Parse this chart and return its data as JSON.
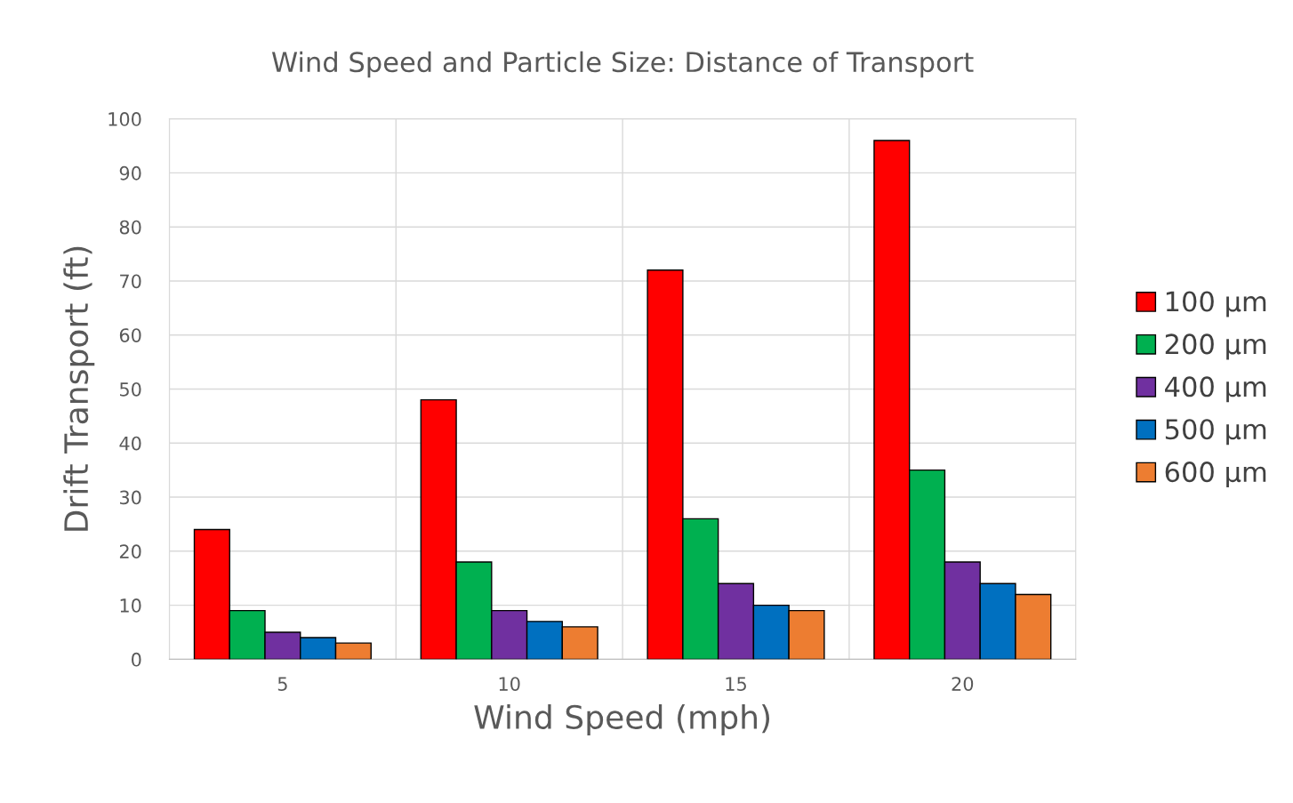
{
  "chart_data": {
    "type": "bar",
    "title": "Wind Speed and Particle Size: Distance of Transport",
    "xlabel": "Wind Speed (mph)",
    "ylabel": "Drift Transport (ft)",
    "categories": [
      "5",
      "10",
      "15",
      "20"
    ],
    "series": [
      {
        "name": "100 µm",
        "color": "#ff0000",
        "values": [
          24,
          48,
          72,
          96
        ]
      },
      {
        "name": "200 µm",
        "color": "#00b050",
        "values": [
          9,
          18,
          26,
          35
        ]
      },
      {
        "name": "400 µm",
        "color": "#7030a0",
        "values": [
          5,
          9,
          14,
          18
        ]
      },
      {
        "name": "500 µm",
        "color": "#0070c0",
        "values": [
          4,
          7,
          10,
          14
        ]
      },
      {
        "name": "600 µm",
        "color": "#ed7d31",
        "values": [
          3,
          6,
          9,
          12
        ]
      }
    ],
    "ylim": [
      0,
      100
    ],
    "yticks": [
      0,
      10,
      20,
      30,
      40,
      50,
      60,
      70,
      80,
      90,
      100
    ],
    "grid": true,
    "legend": "right"
  }
}
